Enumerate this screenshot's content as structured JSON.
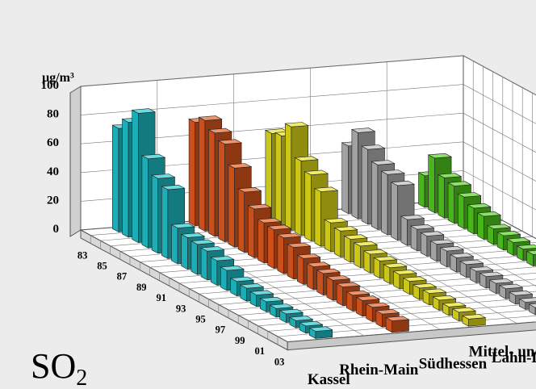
{
  "chart_data": {
    "type": "bar",
    "chart_style": "3d-grouped-bars",
    "unit": "µg/m³",
    "formula_main": "SO",
    "formula_sub": "2",
    "ylim": [
      0,
      100
    ],
    "y_ticks": [
      "0",
      "20",
      "40",
      "60",
      "80",
      "100"
    ],
    "x_ticks": [
      "83",
      "85",
      "87",
      "89",
      "91",
      "93",
      "95",
      "97",
      "99",
      "01",
      "03"
    ],
    "years": [
      "83",
      "84",
      "85",
      "86",
      "87",
      "88",
      "89",
      "90",
      "91",
      "92",
      "93",
      "94",
      "95",
      "96",
      "97",
      "98",
      "99",
      "00",
      "01",
      "02",
      "03"
    ],
    "grid": true,
    "series": [
      {
        "name": "Kassel",
        "color": "#1fc6cf",
        "values": [
          72,
          80,
          90,
          62,
          52,
          48,
          25,
          22,
          21,
          20,
          17,
          14,
          10,
          9,
          8,
          7,
          6,
          6,
          5,
          5,
          5
        ]
      },
      {
        "name": "Rhein-Main",
        "color": "#e55a1f",
        "values": [
          72,
          77,
          72,
          68,
          55,
          42,
          34,
          28,
          27,
          25,
          22,
          18,
          16,
          15,
          14,
          13,
          11,
          11,
          10,
          9,
          8
        ]
      },
      {
        "name": "Südhessen",
        "color": "#e8e11a",
        "values": [
          60,
          62,
          72,
          52,
          46,
          38,
          20,
          18,
          16,
          15,
          13,
          12,
          11,
          10,
          9,
          8,
          8,
          7,
          6,
          6,
          5
        ]
      },
      {
        "name": "Lahn-Dill",
        "color": "#b8b8b8",
        "values": [
          47,
          60,
          52,
          45,
          42,
          38,
          18,
          15,
          14,
          12,
          11,
          10,
          9,
          8,
          8,
          7,
          7,
          6,
          5,
          5,
          5
        ]
      },
      {
        "name": "Mittel- und Nordhessen",
        "color": "#52cf1f",
        "values": [
          22,
          38,
          28,
          26,
          22,
          18,
          16,
          11,
          10,
          9,
          8,
          8,
          7,
          6,
          6,
          5,
          5,
          4,
          4,
          4,
          4
        ]
      }
    ]
  }
}
